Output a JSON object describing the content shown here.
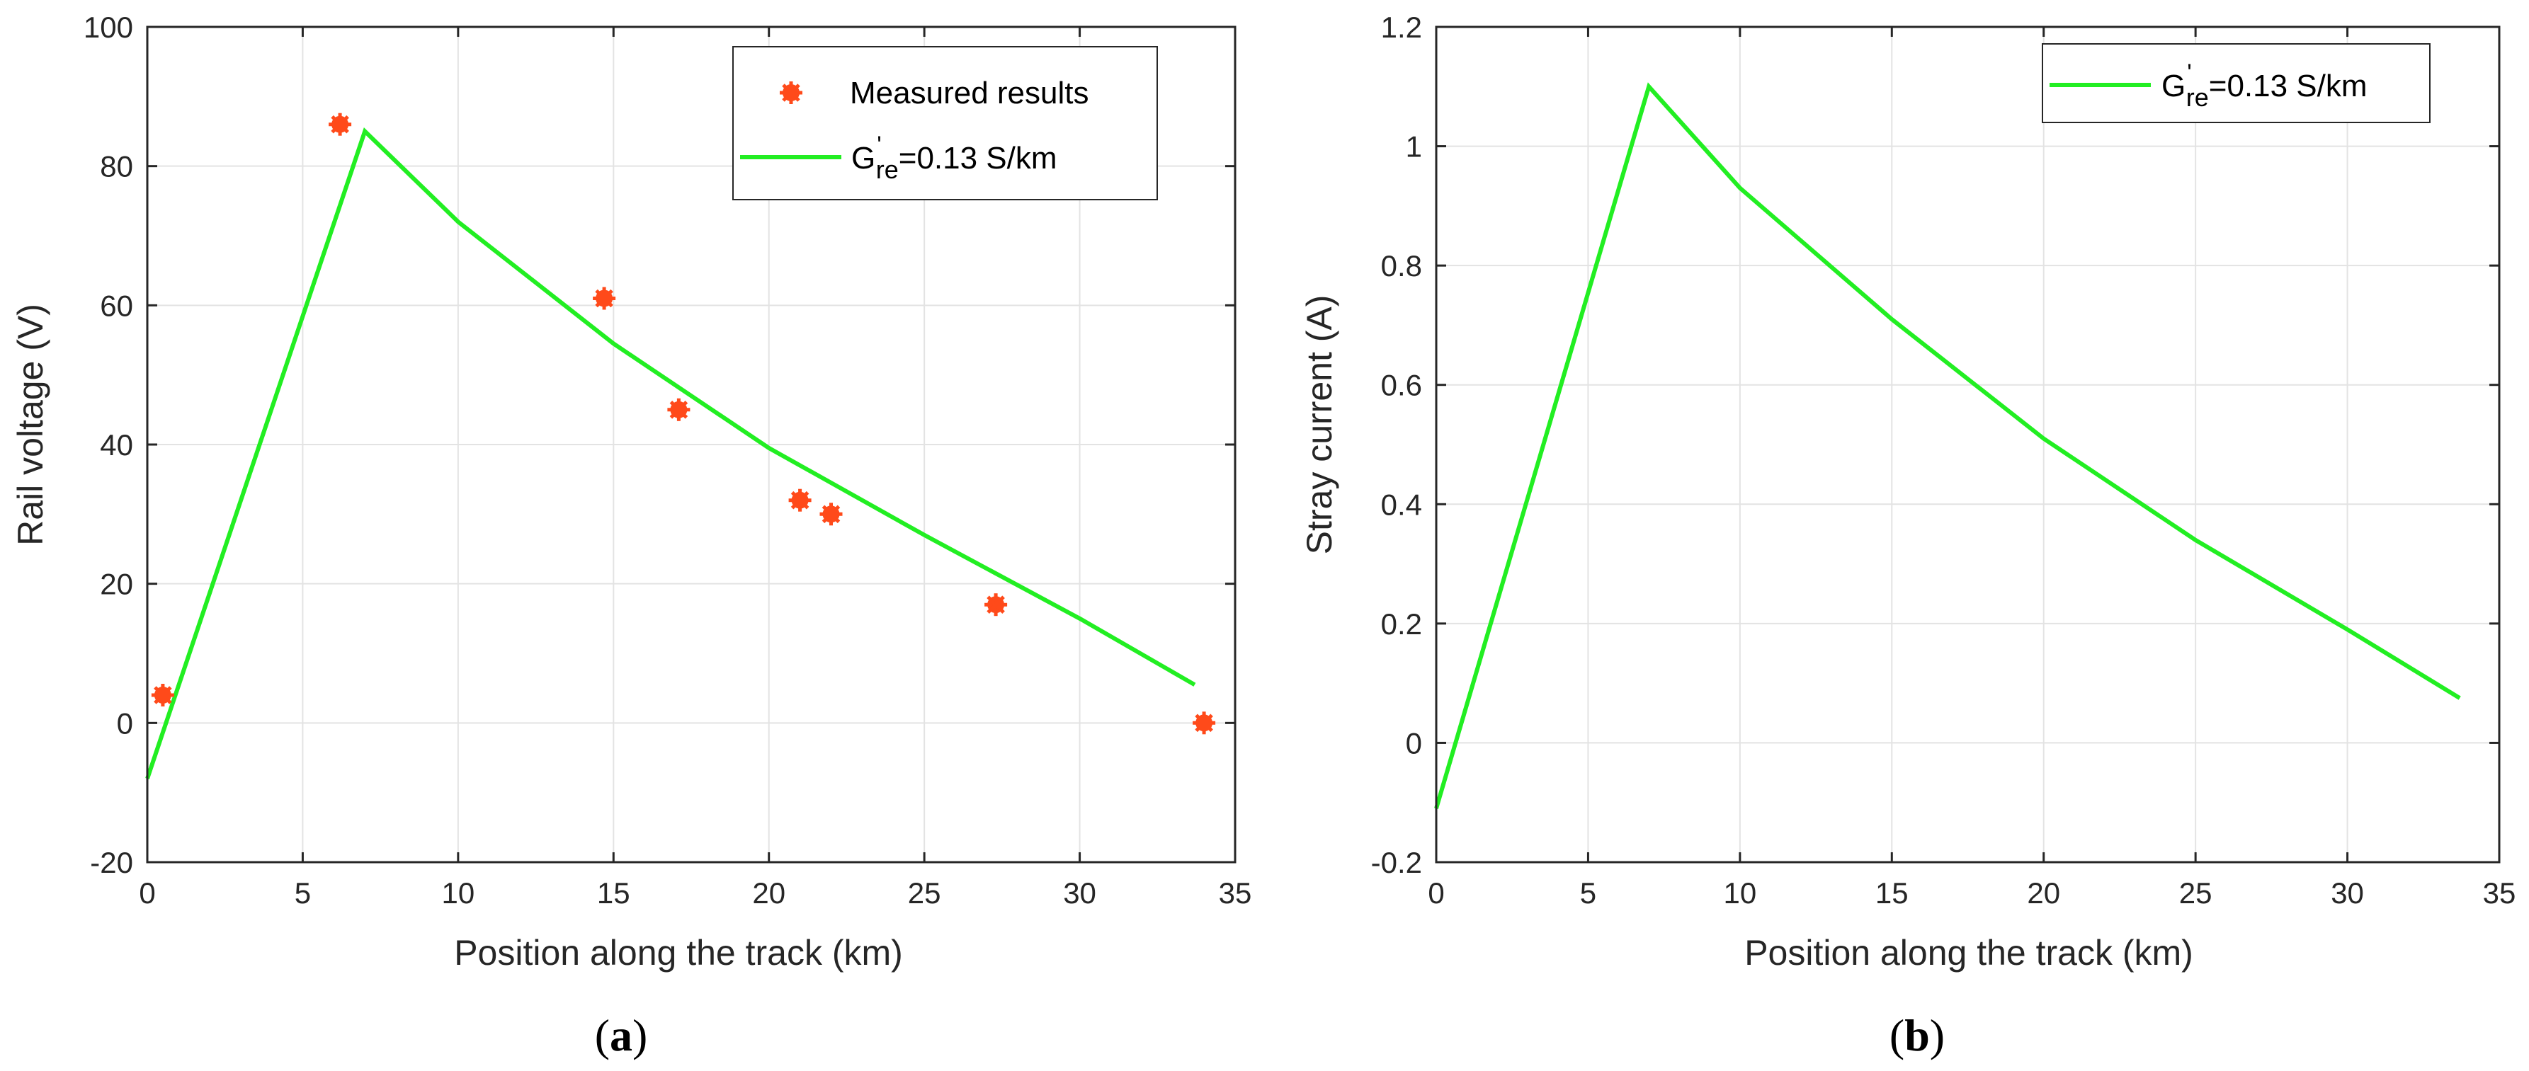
{
  "colors": {
    "line": "#22ee22",
    "marker": "#ff4a1a",
    "grid": "#e3e3e3",
    "axis": "#262626"
  },
  "chart_data": [
    {
      "type": "line",
      "panel": "a",
      "caption_prefix": "(",
      "caption_letter": "a",
      "caption_suffix": ")",
      "xlabel": "Position along the track (km)",
      "ylabel": "Rail voltage (V)",
      "xlim": [
        0,
        35
      ],
      "ylim": [
        -20,
        100
      ],
      "xticks": [
        0,
        5,
        10,
        15,
        20,
        25,
        30,
        35
      ],
      "yticks": [
        -20,
        0,
        20,
        40,
        60,
        80,
        100
      ],
      "grid": true,
      "legend_position": "top-right",
      "series": [
        {
          "name": "Measured results",
          "kind": "scatter",
          "x": [
            0.5,
            6.2,
            14.7,
            17.1,
            21.0,
            22.0,
            27.3,
            34.0
          ],
          "y": [
            4,
            86,
            61,
            45,
            32,
            30,
            17,
            0
          ]
        },
        {
          "name_prefix": "G",
          "name_superscript": "'",
          "name_subscript": "re",
          "name_suffix": "=0.13 S/km",
          "kind": "line",
          "x": [
            0,
            7,
            10,
            15,
            20,
            25,
            30,
            33.7
          ],
          "y": [
            -8,
            85,
            72,
            54.5,
            39.5,
            27,
            15,
            5.5
          ]
        }
      ]
    },
    {
      "type": "line",
      "panel": "b",
      "caption_prefix": "(",
      "caption_letter": "b",
      "caption_suffix": ")",
      "xlabel": "Position along the track (km)",
      "ylabel": "Stray current (A)",
      "xlim": [
        0,
        35
      ],
      "ylim": [
        -0.2,
        1.2
      ],
      "xticks": [
        0,
        5,
        10,
        15,
        20,
        25,
        30,
        35
      ],
      "yticks": [
        -0.2,
        0,
        0.2,
        0.4,
        0.6,
        0.8,
        1,
        1.2
      ],
      "ytick_labels": [
        "-0.2",
        "0",
        "0.2",
        "0.4",
        "0.6",
        "0.8",
        "1",
        "1.2"
      ],
      "grid": true,
      "legend_position": "top-right",
      "series": [
        {
          "name_prefix": "G",
          "name_superscript": "'",
          "name_subscript": "re",
          "name_suffix": "=0.13 S/km",
          "kind": "line",
          "x": [
            0,
            7,
            10,
            15,
            20,
            25,
            30,
            33.7
          ],
          "y": [
            -0.11,
            1.1,
            0.93,
            0.71,
            0.51,
            0.34,
            0.19,
            0.075
          ]
        }
      ]
    }
  ]
}
